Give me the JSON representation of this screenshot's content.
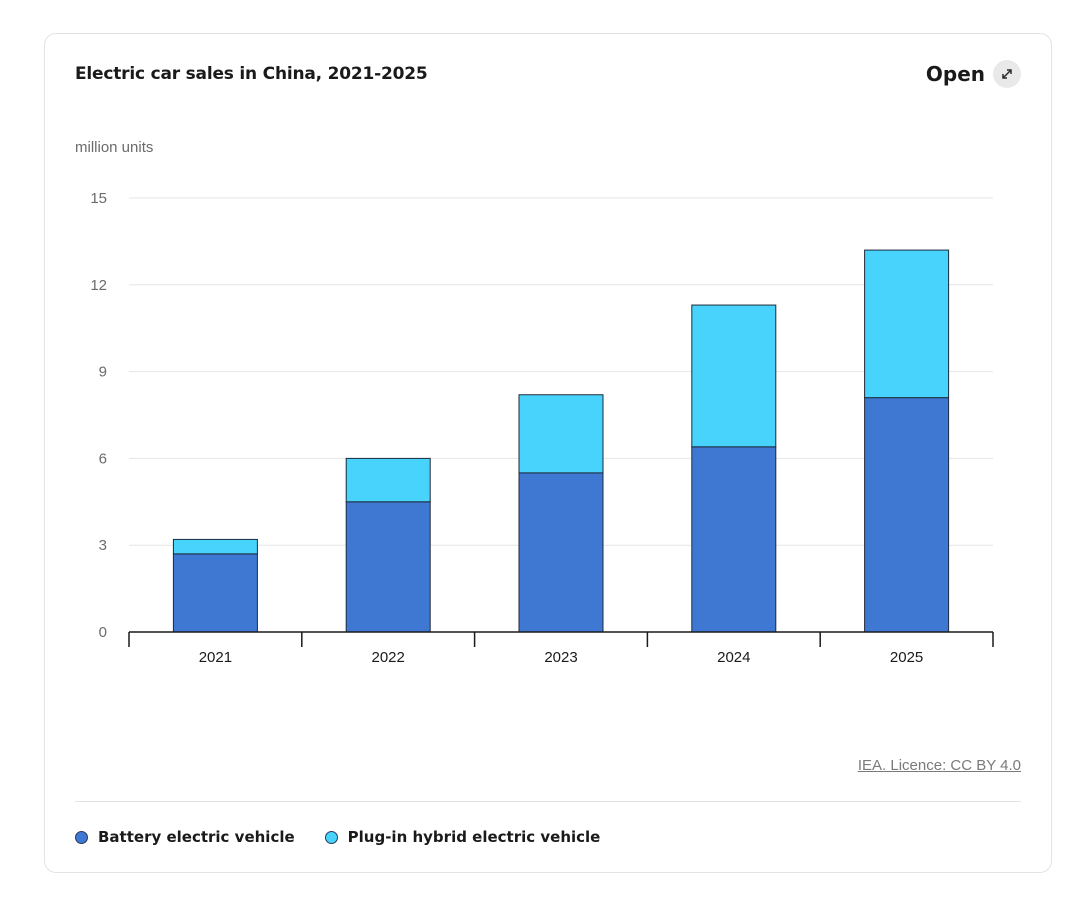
{
  "card": {
    "title": "Electric car sales in China, 2021-2025",
    "open_label": "Open",
    "open_icon": "expand-arrows-icon",
    "credit": "IEA. Licence: CC BY 4.0"
  },
  "chart_data": {
    "type": "bar",
    "stacked": true,
    "title": "Electric car sales in China, 2021-2025",
    "ylabel": "million units",
    "xlabel": "",
    "categories": [
      "2021",
      "2022",
      "2023",
      "2024",
      "2025"
    ],
    "ylim": [
      0,
      15
    ],
    "yticks": [
      0,
      3,
      6,
      9,
      12,
      15
    ],
    "grid": true,
    "legend_position": "bottom-left",
    "series": [
      {
        "name": "Battery electric vehicle",
        "color": "#3e78d3",
        "values": [
          2.7,
          4.5,
          5.5,
          6.4,
          8.1
        ]
      },
      {
        "name": "Plug-in hybrid electric vehicle",
        "color": "#47d3fc",
        "values": [
          0.5,
          1.5,
          2.7,
          4.9,
          5.1
        ]
      }
    ]
  }
}
